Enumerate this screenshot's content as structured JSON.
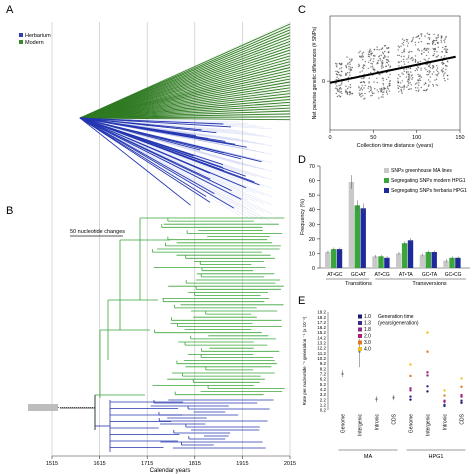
{
  "panels": {
    "a": {
      "letter": "A",
      "legend": [
        {
          "label": "Herbarium",
          "color": "#2f3fb0"
        },
        {
          "label": "Modern",
          "color": "#3b8a2a"
        }
      ]
    },
    "b": {
      "letter": "B",
      "scale_label": "50 nucleotide changes"
    },
    "c": {
      "letter": "C"
    },
    "d": {
      "letter": "D"
    },
    "e": {
      "letter": "E"
    }
  },
  "timeline": {
    "ticks": [
      1515,
      1615,
      1715,
      1815,
      1915,
      2015
    ],
    "xlabel": "Calendar years"
  },
  "chart_data": [
    {
      "id": "C",
      "type": "scatter",
      "xlabel": "Collection time distance (years)",
      "ylabel": "Net pairwise genetic differences (# SNPs)",
      "xlim": [
        0,
        150
      ],
      "xticks": [
        0,
        50,
        100,
        150
      ],
      "yticks": [
        0
      ],
      "ylim": [
        -60,
        80
      ],
      "clusters": [
        {
          "x": 10,
          "y_center": 2,
          "spread": 22
        },
        {
          "x": 22,
          "y_center": 6,
          "spread": 24
        },
        {
          "x": 37,
          "y_center": 8,
          "spread": 30
        },
        {
          "x": 48,
          "y_center": 12,
          "spread": 30
        },
        {
          "x": 58,
          "y_center": 10,
          "spread": 32
        },
        {
          "x": 66,
          "y_center": 14,
          "spread": 30
        },
        {
          "x": 82,
          "y_center": 18,
          "spread": 34
        },
        {
          "x": 92,
          "y_center": 20,
          "spread": 34
        },
        {
          "x": 102,
          "y_center": 22,
          "spread": 36
        },
        {
          "x": 112,
          "y_center": 24,
          "spread": 36
        },
        {
          "x": 122,
          "y_center": 26,
          "spread": 32
        },
        {
          "x": 132,
          "y_center": 28,
          "spread": 28
        }
      ],
      "regression": {
        "x": [
          0,
          145
        ],
        "y": [
          -2,
          30
        ]
      }
    },
    {
      "id": "D",
      "type": "bar",
      "ylabel": "Frequency (%)",
      "ylim": [
        0,
        70
      ],
      "yticks": [
        0,
        10,
        20,
        30,
        40,
        50,
        60,
        70
      ],
      "categories": [
        "AT•GC",
        "GC•AT",
        "AT•CG",
        "AT•TA",
        "GC•TA",
        "GC•CG"
      ],
      "groups": [
        "Transitions",
        "Transversions"
      ],
      "series": [
        {
          "name": "SNPs greenhouse MA lines",
          "color": "#c8c8c8",
          "values": [
            11,
            59,
            8,
            10,
            9,
            5
          ]
        },
        {
          "name": "Segregating SNPs modern HPG1",
          "color": "#3aa53a",
          "values": [
            13,
            43,
            8,
            17,
            11,
            7
          ]
        },
        {
          "name": "Segregating SNPs herbaria HPG1",
          "color": "#1f2a9a",
          "values": [
            13,
            41,
            7,
            19,
            11,
            7
          ]
        }
      ]
    },
    {
      "id": "E",
      "type": "scatter",
      "ylabel": "Rate per nucleotide ⁻¹ generation ⁻¹ (x 10⁻⁹)",
      "yticks": [
        "0.2",
        "1.2",
        "2.2",
        "3.2",
        "4.2",
        "5.2",
        "6.2",
        "7.2",
        "8.2",
        "9.2",
        "10.2",
        "11.2",
        "12.2",
        "13.2",
        "14.2",
        "15.2",
        "16.2",
        "17.2",
        "18.2",
        "19.2"
      ],
      "categories": [
        "Genome",
        "Intergenic",
        "Intronic",
        "CDS",
        "Genome",
        "Intergenic",
        "Intronic",
        "CDS"
      ],
      "group_labels": [
        "MA",
        "HPG1"
      ],
      "legend_title": "Generation time",
      "legend_subtitle": "(years/generation)",
      "legend": [
        {
          "label": "1.0",
          "color": "#1a1a6e"
        },
        {
          "label": "1.3",
          "color": "#3a2a8a"
        },
        {
          "label": "1.8",
          "color": "#8a2a8a"
        },
        {
          "label": "2.0",
          "color": "#b02070"
        },
        {
          "label": "3.0",
          "color": "#e07a20"
        },
        {
          "label": "4.0",
          "color": "#f0c020"
        }
      ],
      "ma_points": [
        {
          "category": 0,
          "y": 7.2,
          "low": 6.6,
          "high": 7.9
        },
        {
          "category": 1,
          "y": 11.5,
          "low": 8.5,
          "high": 14.0
        },
        {
          "category": 2,
          "y": 2.3,
          "low": 1.7,
          "high": 2.9
        },
        {
          "category": 3,
          "y": 2.6,
          "low": 2.1,
          "high": 3.1
        }
      ],
      "hpg1_points": [
        {
          "category": 4,
          "values": [
            2.2,
            2.8,
            4.0,
            4.4,
            6.8,
            9.0
          ]
        },
        {
          "category": 5,
          "values": [
            3.8,
            4.8,
            6.9,
            7.5,
            11.5,
            15.2
          ]
        },
        {
          "category": 6,
          "values": [
            1.0,
            1.2,
            1.8,
            2.0,
            3.0,
            4.0
          ]
        },
        {
          "category": 7,
          "values": [
            1.6,
            2.0,
            2.8,
            3.1,
            4.7,
            6.3
          ]
        }
      ]
    }
  ]
}
